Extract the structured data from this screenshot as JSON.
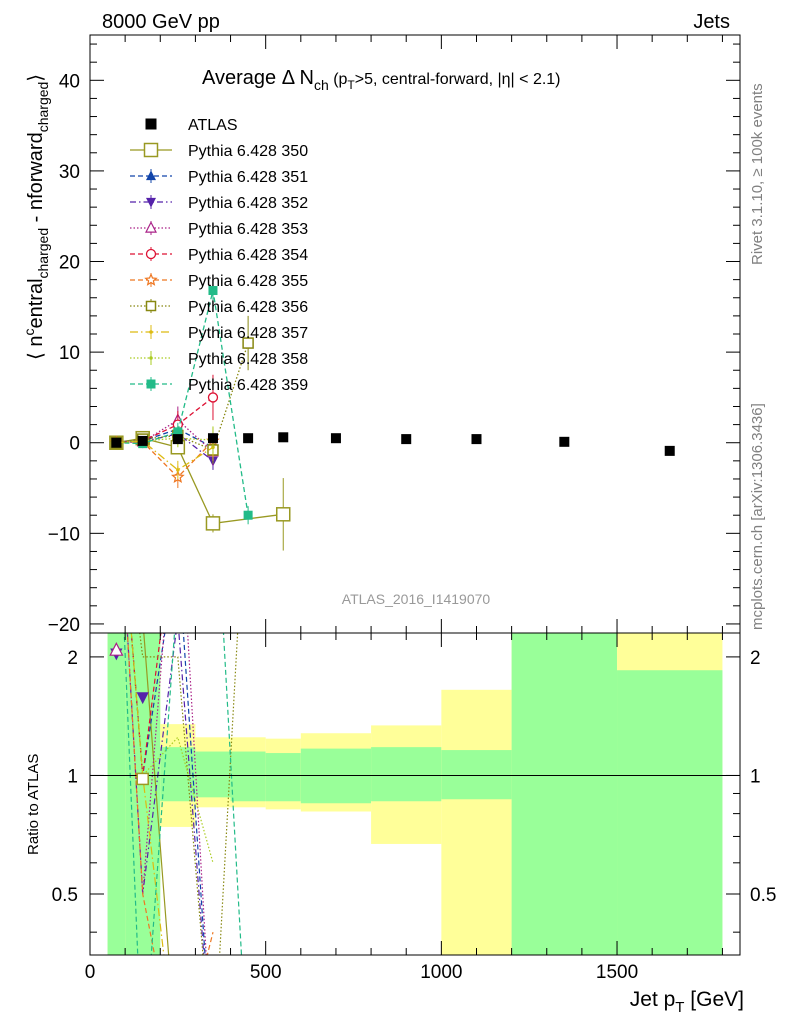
{
  "header": {
    "left": "8000 GeV pp",
    "right": "Jets"
  },
  "side": {
    "rivet": "Rivet 3.1.10, ≥ 100k events",
    "mcplots": "mcplots.cern.ch [arXiv:1306.3436]"
  },
  "watermark": "ATLAS_2016_I1419070",
  "colors": {
    "ATLAS": "#000000",
    "band_inner": "#99ff99",
    "band_outer": "#ffff99"
  },
  "chart_data": [
    {
      "type": "line",
      "title": "Average Δ N_ch (p_T>5, central-forward, |η| < 2.1)",
      "title_parts": {
        "main": "Average Δ N",
        "sub_ch": "ch",
        "open": " (p",
        "sub_T": "T",
        "rest": ">5, central-forward, |η| < 2.1)"
      },
      "ylabel": "⟨ n^central_charged - n^forward_charged ⟩",
      "ylabel_parts": {
        "open": "⟨ n",
        "sup_c": "c",
        "central": "entral",
        "sub1": "charged",
        "minus": " - n",
        "forward": "forward",
        "sub2": "charged",
        "close": "⟩"
      },
      "xlim": [
        0,
        1850
      ],
      "ylim": [
        -21,
        45
      ],
      "yticks": [
        "40",
        "30",
        "20",
        "10",
        "0",
        "−10",
        "−20"
      ],
      "ytick_values": [
        40,
        30,
        20,
        10,
        0,
        -10,
        -20
      ],
      "legend_position": "top-left",
      "data": {
        "name": "ATLAS",
        "x": [
          75,
          150,
          250,
          350,
          450,
          550,
          700,
          900,
          1100,
          1350,
          1650
        ],
        "y": [
          0.0,
          0.2,
          0.4,
          0.5,
          0.5,
          0.6,
          0.5,
          0.4,
          0.4,
          0.1,
          -0.9
        ]
      },
      "series": [
        {
          "name": "Pythia 6.428 350",
          "color": "#999922",
          "dash": "solid",
          "marker": "square-open",
          "x": [
            75,
            150,
            250,
            350,
            550
          ],
          "y": [
            0.0,
            0.5,
            -0.5,
            -8.9,
            -7.9
          ],
          "err": [
            0.3,
            0.4,
            0.8,
            1.0,
            4.0
          ]
        },
        {
          "name": "Pythia 6.428 351",
          "color": "#1144aa",
          "dash": "5,3",
          "marker": "triangle-up",
          "x": [
            75,
            150,
            250,
            350
          ],
          "y": [
            0.1,
            0.2,
            1.5,
            -0.5
          ],
          "err": [
            0.3,
            0.5,
            1.0,
            1.0
          ]
        },
        {
          "name": "Pythia 6.428 352",
          "color": "#5522aa",
          "dash": "6,3,1.5,3",
          "marker": "triangle-down",
          "x": [
            75,
            150,
            250,
            350
          ],
          "y": [
            0.1,
            0.1,
            1.0,
            -2.0
          ],
          "err": [
            0.3,
            0.5,
            1.0,
            1.0
          ]
        },
        {
          "name": "Pythia 6.428 353",
          "color": "#aa2288",
          "dash": "1.5,2",
          "marker": "triangle-up-open",
          "x": [
            75,
            150,
            250,
            350
          ],
          "y": [
            0.0,
            0.1,
            2.5,
            -1.0
          ],
          "err": [
            0.3,
            0.5,
            1.5,
            1.5
          ]
        },
        {
          "name": "Pythia 6.428 354",
          "color": "#dd1133",
          "dash": "5,3",
          "marker": "circle-open",
          "x": [
            75,
            150,
            250,
            350
          ],
          "y": [
            0.0,
            0.2,
            2.0,
            5.0
          ],
          "err": [
            0.3,
            0.5,
            1.5,
            2.5
          ]
        },
        {
          "name": "Pythia 6.428 355",
          "color": "#ee7722",
          "dash": "5,3",
          "marker": "star-open",
          "x": [
            75,
            150,
            250,
            350
          ],
          "y": [
            0.0,
            0.1,
            -3.8,
            0.2
          ],
          "err": [
            0.3,
            0.5,
            1.2,
            1.5
          ]
        },
        {
          "name": "Pythia 6.428 356",
          "color": "#888811",
          "dash": "1.5,2",
          "marker": "square-open",
          "x": [
            75,
            150,
            250,
            350,
            450
          ],
          "y": [
            0.0,
            0.4,
            0.8,
            -0.8,
            11.0
          ],
          "err": [
            0.3,
            0.5,
            1.0,
            1.5,
            3.0
          ]
        },
        {
          "name": "Pythia 6.428 357",
          "color": "#ddbb11",
          "dash": "8,3,1.5,3",
          "marker": "dot",
          "x": [
            75,
            150,
            250,
            350
          ],
          "y": [
            0.0,
            0.2,
            -3.0,
            -0.5
          ],
          "err": [
            0.3,
            0.5,
            1.0,
            1.5
          ]
        },
        {
          "name": "Pythia 6.428 358",
          "color": "#aacc22",
          "dash": "1.5,2",
          "marker": "dot",
          "x": [
            75,
            150,
            250,
            350
          ],
          "y": [
            0.0,
            0.2,
            0.5,
            0.3
          ],
          "err": [
            0.3,
            0.5,
            1.0,
            1.5
          ]
        },
        {
          "name": "Pythia 6.428 359",
          "color": "#22bb88",
          "dash": "5,3",
          "marker": "square-filled",
          "x": [
            75,
            150,
            250,
            350,
            450
          ],
          "y": [
            0.0,
            -0.1,
            1.2,
            16.8,
            -8.0
          ],
          "err": [
            0.3,
            0.5,
            1.0,
            1.5,
            1.0
          ]
        }
      ]
    },
    {
      "type": "line",
      "title": "",
      "ylabel": "Ratio to ATLAS",
      "xlabel": "Jet p_T [GeV]",
      "xlabel_parts": {
        "main": "Jet p",
        "sub": "T",
        "rest": " [GeV]"
      },
      "xlim": [
        0,
        1850
      ],
      "ylim": [
        0.35,
        2.3
      ],
      "log_y": true,
      "yticks": [
        "0.5",
        "1",
        "2"
      ],
      "ytick_values": [
        0.5,
        1,
        2
      ],
      "xticks": [
        "0",
        "500",
        "1000",
        "1500"
      ],
      "xtick_values": [
        0,
        500,
        1000,
        1500
      ],
      "reference_line": 1,
      "bands": [
        {
          "x0": 50,
          "x1": 100,
          "inner": [
            0.3,
            3.0
          ],
          "outer": [
            0.3,
            3.0
          ]
        },
        {
          "x0": 100,
          "x1": 200,
          "inner": [
            0.3,
            3.0
          ],
          "outer": [
            0.3,
            3.0
          ]
        },
        {
          "x0": 200,
          "x1": 300,
          "inner": [
            0.86,
            1.18
          ],
          "outer": [
            0.74,
            1.35
          ]
        },
        {
          "x0": 300,
          "x1": 400,
          "inner": [
            0.88,
            1.15
          ],
          "outer": [
            0.83,
            1.25
          ]
        },
        {
          "x0": 400,
          "x1": 500,
          "inner": [
            0.86,
            1.15
          ],
          "outer": [
            0.83,
            1.25
          ]
        },
        {
          "x0": 500,
          "x1": 600,
          "inner": [
            0.86,
            1.14
          ],
          "outer": [
            0.82,
            1.24
          ]
        },
        {
          "x0": 600,
          "x1": 800,
          "inner": [
            0.85,
            1.17
          ],
          "outer": [
            0.81,
            1.28
          ]
        },
        {
          "x0": 800,
          "x1": 1000,
          "inner": [
            0.86,
            1.18
          ],
          "outer": [
            0.67,
            1.34
          ]
        },
        {
          "x0": 1000,
          "x1": 1200,
          "inner": [
            0.87,
            1.16
          ],
          "outer": [
            0.3,
            1.65
          ]
        },
        {
          "x0": 1200,
          "x1": 1500,
          "inner": [
            0.3,
            3.0
          ],
          "outer": [
            0.3,
            3.0
          ]
        },
        {
          "x0": 1500,
          "x1": 1800,
          "inner": [
            0.3,
            1.85
          ],
          "outer": [
            0.3,
            3.0
          ]
        }
      ],
      "ratio_markers": [
        {
          "series": "Pythia 6.428 352",
          "x": 75,
          "y": 2.04
        },
        {
          "series": "Pythia 6.428 353",
          "x": 75,
          "y": 2.08
        },
        {
          "series": "Pythia 6.428 352",
          "x": 150,
          "y": 1.58
        },
        {
          "series": "Pythia 6.428 350",
          "x": 150,
          "y": 0.98
        }
      ]
    }
  ]
}
